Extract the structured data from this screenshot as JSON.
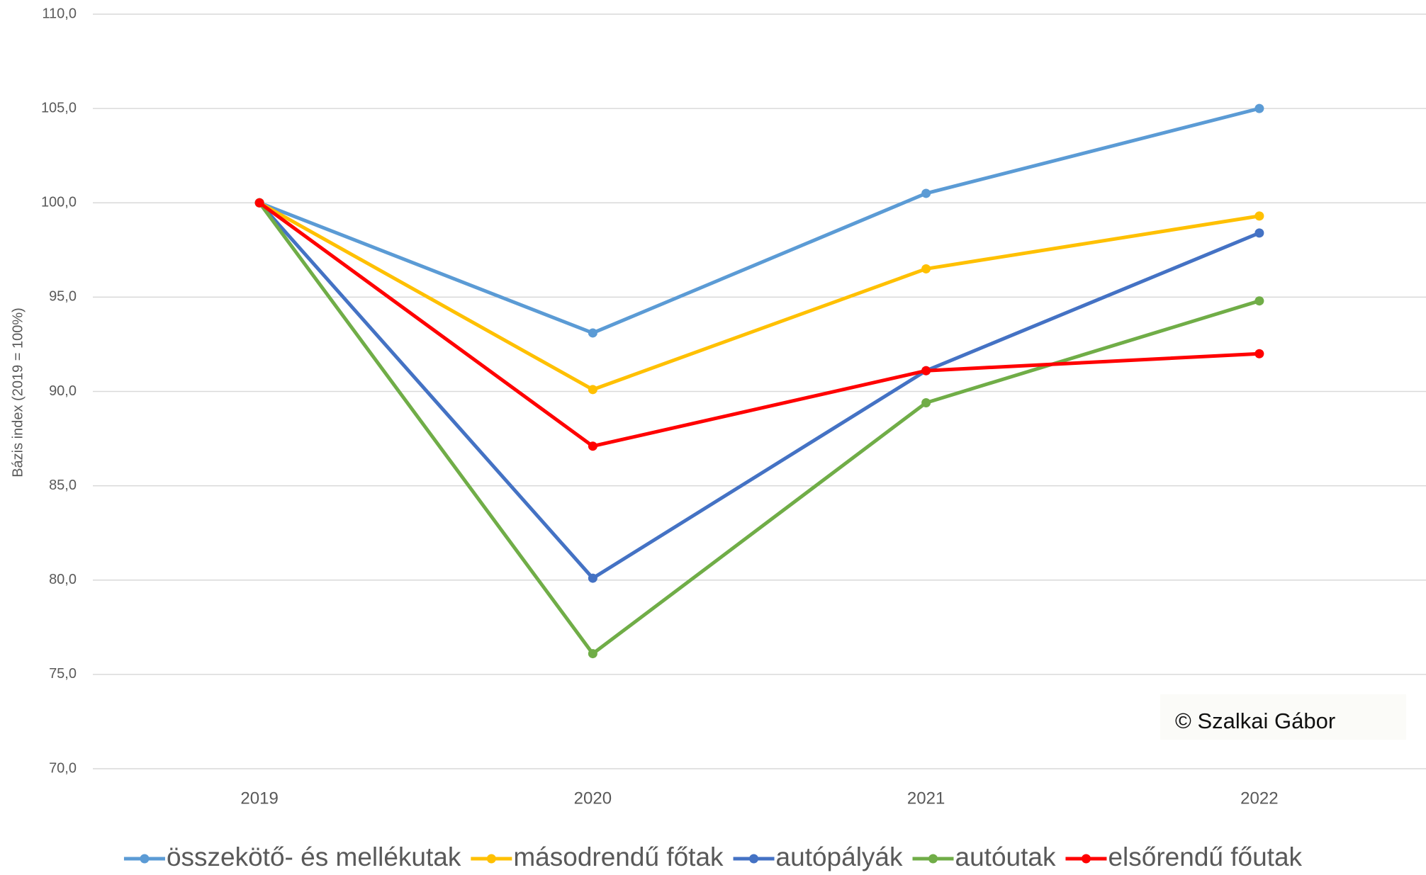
{
  "chart_data": {
    "type": "line",
    "y_label": "Bázis index (2019 = 100%)",
    "annotation": "© Szalkai Gábor",
    "categories": [
      "2019",
      "2020",
      "2021",
      "2022"
    ],
    "ylim": [
      70,
      110
    ],
    "yticks": [
      {
        "value": 70,
        "label": "70,0"
      },
      {
        "value": 75,
        "label": "75,0"
      },
      {
        "value": 80,
        "label": "80,0"
      },
      {
        "value": 85,
        "label": "85,0"
      },
      {
        "value": 90,
        "label": "90,0"
      },
      {
        "value": 95,
        "label": "95,0"
      },
      {
        "value": 100,
        "label": "100,0"
      },
      {
        "value": 105,
        "label": "105,0"
      },
      {
        "value": 110,
        "label": "110,0"
      }
    ],
    "grid": true,
    "legend": "bottom",
    "series": [
      {
        "name": "összekötő- és mellékutak",
        "color": "#5b9bd5",
        "values": [
          100,
          93.1,
          100.5,
          105.0
        ]
      },
      {
        "name": "másodrendű főtak",
        "color": "#ffc000",
        "values": [
          100,
          90.1,
          96.5,
          99.3
        ]
      },
      {
        "name": "autópályák",
        "color": "#4472c4",
        "values": [
          100,
          80.1,
          91.1,
          98.4
        ]
      },
      {
        "name": "autóutak",
        "color": "#70ad47",
        "values": [
          100,
          76.1,
          89.4,
          94.8
        ]
      },
      {
        "name": "elsőrendű főutak",
        "color": "#ff0000",
        "values": [
          100,
          87.1,
          91.1,
          92.0
        ]
      }
    ]
  }
}
